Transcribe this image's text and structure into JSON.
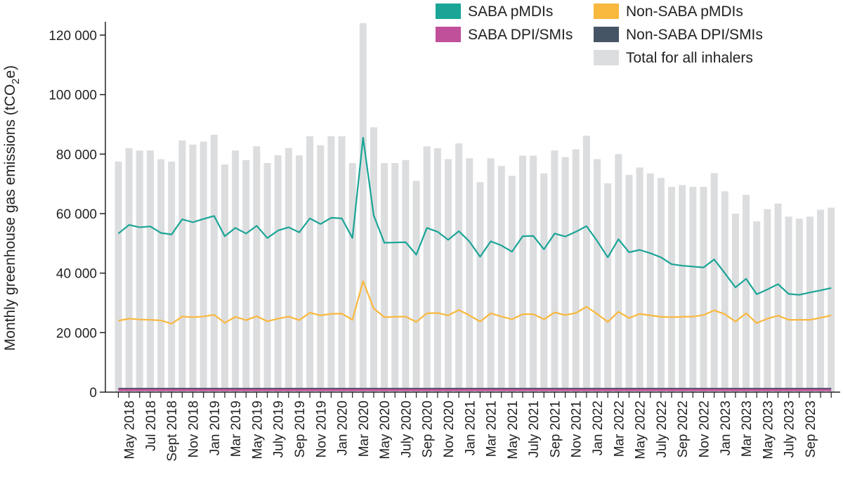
{
  "chart_data": {
    "type": "bar+line",
    "title": "",
    "ylabel_main": "Monthly greenhouse gas emissions (tCO",
    "ylabel_sub": "2",
    "ylabel_end": "e)",
    "ylim": [
      0,
      124000
    ],
    "y_ticks": [
      0,
      20000,
      40000,
      60000,
      80000,
      100000,
      120000
    ],
    "y_tick_labels": [
      "0",
      "20 000",
      "40 000",
      "60 000",
      "80 000",
      "100 000",
      "120 000"
    ],
    "x_tick_labels": [
      {
        "index": 1,
        "label": "May 2018"
      },
      {
        "index": 3,
        "label": "Jul 2018"
      },
      {
        "index": 5,
        "label": "Sept 2018"
      },
      {
        "index": 7,
        "label": "Nov 2018"
      },
      {
        "index": 9,
        "label": "Jan 2019"
      },
      {
        "index": 11,
        "label": "Mar 2019"
      },
      {
        "index": 13,
        "label": "May 2019"
      },
      {
        "index": 15,
        "label": "July 2019"
      },
      {
        "index": 17,
        "label": "Sep 2019"
      },
      {
        "index": 19,
        "label": "Nov 2019"
      },
      {
        "index": 21,
        "label": "Jan 2020"
      },
      {
        "index": 23,
        "label": "Mar 2020"
      },
      {
        "index": 25,
        "label": "May 2020"
      },
      {
        "index": 27,
        "label": "July 2020"
      },
      {
        "index": 29,
        "label": "Sep 2020"
      },
      {
        "index": 31,
        "label": "Nov 2020"
      },
      {
        "index": 33,
        "label": "Jan 2021"
      },
      {
        "index": 35,
        "label": "Mar 2021"
      },
      {
        "index": 37,
        "label": "May 2021"
      },
      {
        "index": 39,
        "label": "July 2021"
      },
      {
        "index": 41,
        "label": "Sep 2021"
      },
      {
        "index": 43,
        "label": "Nov 2021"
      },
      {
        "index": 45,
        "label": "Jan 2022"
      },
      {
        "index": 47,
        "label": "Mar 2022"
      },
      {
        "index": 49,
        "label": "May 2022"
      },
      {
        "index": 51,
        "label": "July 2022"
      },
      {
        "index": 53,
        "label": "Sep 2022"
      },
      {
        "index": 55,
        "label": "Nov 2022"
      },
      {
        "index": 57,
        "label": "Jan 2023"
      },
      {
        "index": 59,
        "label": "Mar 2023"
      },
      {
        "index": 61,
        "label": "May 2023"
      },
      {
        "index": 63,
        "label": "July 2023"
      },
      {
        "index": 65,
        "label": "Sep 2023"
      }
    ],
    "series": [
      {
        "name": "Total for all inhalers",
        "type": "bar",
        "color": "#dcdddf",
        "values": [
          77500,
          82000,
          81200,
          81200,
          78300,
          77500,
          84600,
          83200,
          84200,
          86500,
          76500,
          81200,
          78000,
          82600,
          77000,
          79600,
          82000,
          79600,
          86000,
          83000,
          86000,
          86000,
          77000,
          124000,
          89000,
          77000,
          77000,
          78000,
          71000,
          82600,
          82000,
          78300,
          83600,
          78600,
          70600,
          78600,
          76000,
          72700,
          79500,
          79500,
          73500,
          81200,
          79000,
          81600,
          86200,
          78300,
          70200,
          80000,
          73000,
          75500,
          73500,
          72000,
          69000,
          69600,
          69000,
          69000,
          73600,
          67500,
          60000,
          66300,
          57400,
          61500,
          63400,
          59000,
          58300,
          59000,
          61300,
          62000
        ]
      },
      {
        "name": "SABA pMDIs",
        "type": "line",
        "color": "#1aa597",
        "values": [
          53300,
          56200,
          55400,
          55700,
          53500,
          53000,
          58100,
          57100,
          58200,
          59200,
          52400,
          55200,
          53300,
          55900,
          51800,
          54300,
          55400,
          53700,
          58400,
          56500,
          58600,
          58400,
          51800,
          85500,
          59400,
          50200,
          50300,
          50400,
          46200,
          55200,
          53900,
          51200,
          54100,
          50600,
          45500,
          50700,
          49300,
          47200,
          52400,
          52500,
          48000,
          53300,
          52300,
          53900,
          55800,
          50800,
          45300,
          51400,
          47000,
          47800,
          46700,
          45300,
          43000,
          42500,
          42200,
          41900,
          44600,
          40000,
          35200,
          38100,
          32900,
          34500,
          36300,
          33000,
          32700,
          33500,
          34200,
          35000
        ]
      },
      {
        "name": "Non-SABA pMDIs",
        "type": "line",
        "color": "#f9b83e",
        "values": [
          24000,
          24700,
          24400,
          24300,
          24100,
          23000,
          25400,
          25200,
          25400,
          26000,
          23300,
          25300,
          24200,
          25500,
          23800,
          24700,
          25400,
          24200,
          26700,
          25800,
          26300,
          26400,
          24300,
          37300,
          28100,
          25200,
          25300,
          25400,
          23600,
          26500,
          26600,
          25800,
          27600,
          25800,
          23700,
          26500,
          25400,
          24500,
          26200,
          26200,
          24500,
          26800,
          25900,
          26600,
          28700,
          26300,
          23600,
          27000,
          24900,
          26300,
          25800,
          25300,
          25200,
          25300,
          25400,
          25900,
          27500,
          26200,
          23700,
          26500,
          23200,
          24700,
          25700,
          24300,
          24300,
          24300,
          25000,
          25800
        ]
      },
      {
        "name": "SABA DPI/SMIs",
        "type": "line",
        "color": "#c0509a",
        "values": [
          700,
          700,
          700,
          700,
          700,
          700,
          700,
          700,
          700,
          700,
          700,
          700,
          700,
          700,
          700,
          700,
          700,
          700,
          700,
          700,
          700,
          700,
          700,
          700,
          700,
          700,
          700,
          700,
          700,
          700,
          700,
          700,
          700,
          700,
          700,
          700,
          700,
          700,
          700,
          700,
          700,
          700,
          700,
          700,
          700,
          700,
          700,
          700,
          700,
          700,
          700,
          700,
          700,
          700,
          700,
          700,
          700,
          700,
          700,
          700,
          700,
          700,
          700,
          700,
          700,
          700,
          700,
          700
        ]
      },
      {
        "name": "Non-SABA DPI/SMIs",
        "type": "line",
        "color": "#465566",
        "values": [
          1100,
          1100,
          1100,
          1100,
          1100,
          1100,
          1100,
          1100,
          1100,
          1100,
          1100,
          1100,
          1100,
          1100,
          1100,
          1100,
          1100,
          1100,
          1100,
          1100,
          1100,
          1100,
          1100,
          1100,
          1100,
          1100,
          1100,
          1100,
          1100,
          1100,
          1100,
          1100,
          1100,
          1100,
          1100,
          1100,
          1100,
          1100,
          1100,
          1100,
          1100,
          1100,
          1100,
          1100,
          1100,
          1100,
          1100,
          1100,
          1100,
          1100,
          1100,
          1100,
          1100,
          1100,
          1100,
          1100,
          1100,
          1100,
          1100,
          1100,
          1100,
          1100,
          1100,
          1100,
          1100,
          1100,
          1100,
          1100
        ]
      }
    ],
    "legend": [
      {
        "label": "SABA pMDIs",
        "color": "#1aa597"
      },
      {
        "label": "Non-SABA pMDIs",
        "color": "#f9b83e"
      },
      {
        "label": "SABA DPI/SMIs",
        "color": "#c0509a"
      },
      {
        "label": "Non-SABA DPI/SMIs",
        "color": "#465566"
      },
      {
        "label": "Total for all inhalers",
        "color": "#dcdddf"
      }
    ],
    "legend_position": "top-right",
    "grid": false
  }
}
